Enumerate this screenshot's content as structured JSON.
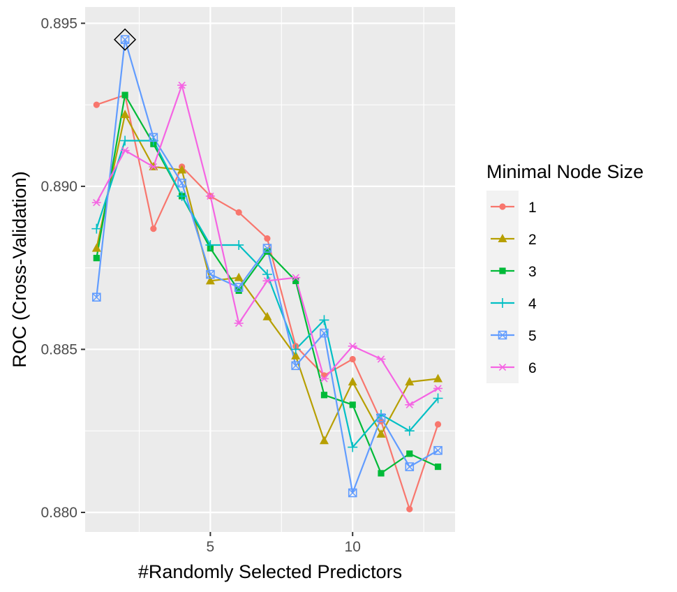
{
  "chart_data": {
    "type": "line",
    "xlabel": "#Randomly Selected Predictors",
    "ylabel": "ROC (Cross-Validation)",
    "xlim": [
      0.6,
      13.6
    ],
    "ylim": [
      0.8794,
      0.8955
    ],
    "xticks": [
      5,
      10
    ],
    "xtick_labels": [
      "5",
      "10"
    ],
    "yticks": [
      0.88,
      0.885,
      0.89,
      0.895
    ],
    "ytick_labels": [
      "0.880",
      "0.885",
      "0.890",
      "0.895"
    ],
    "grid": true,
    "legend_position": "right",
    "legend_title": "Minimal Node Size",
    "x": [
      1,
      2,
      3,
      4,
      5,
      6,
      7,
      8,
      9,
      10,
      11,
      12,
      13
    ],
    "series": [
      {
        "name": "1",
        "color": "#F8766D",
        "shape": "circle",
        "values": [
          0.8925,
          0.8928,
          0.8887,
          0.8906,
          0.8897,
          0.8892,
          0.8884,
          0.8851,
          0.8842,
          0.8847,
          0.8828,
          0.8801,
          0.8827
        ]
      },
      {
        "name": "2",
        "color": "#B79F00",
        "shape": "triangle",
        "values": [
          0.8881,
          0.8922,
          0.8906,
          0.8905,
          0.8871,
          0.8872,
          0.886,
          0.8848,
          0.8822,
          0.884,
          0.8824,
          0.884,
          0.8841
        ]
      },
      {
        "name": "3",
        "color": "#00BA38",
        "shape": "square",
        "values": [
          0.8878,
          0.8928,
          0.8913,
          0.8897,
          0.8881,
          0.8868,
          0.888,
          0.8871,
          0.8836,
          0.8833,
          0.8812,
          0.8818,
          0.8814
        ]
      },
      {
        "name": "4",
        "color": "#00BFC4",
        "shape": "plus",
        "values": [
          0.8887,
          0.8914,
          0.8914,
          0.8897,
          0.8882,
          0.8882,
          0.8873,
          0.885,
          0.8859,
          0.882,
          0.883,
          0.8825,
          0.8835
        ]
      },
      {
        "name": "5",
        "color": "#619CFF",
        "shape": "boxcross",
        "values": [
          0.8866,
          0.8945,
          0.8915,
          0.8901,
          0.8873,
          0.8869,
          0.8881,
          0.8845,
          0.8855,
          0.8806,
          0.8829,
          0.8814,
          0.8819
        ]
      },
      {
        "name": "6",
        "color": "#F564E3",
        "shape": "asterisk",
        "values": [
          0.8895,
          0.8911,
          0.8906,
          0.8931,
          0.8897,
          0.8858,
          0.8871,
          0.8872,
          0.8841,
          0.8851,
          0.8847,
          0.8833,
          0.8838
        ]
      }
    ],
    "best_marker": {
      "x": 2,
      "y": 0.8945,
      "shape": "diamond"
    }
  }
}
